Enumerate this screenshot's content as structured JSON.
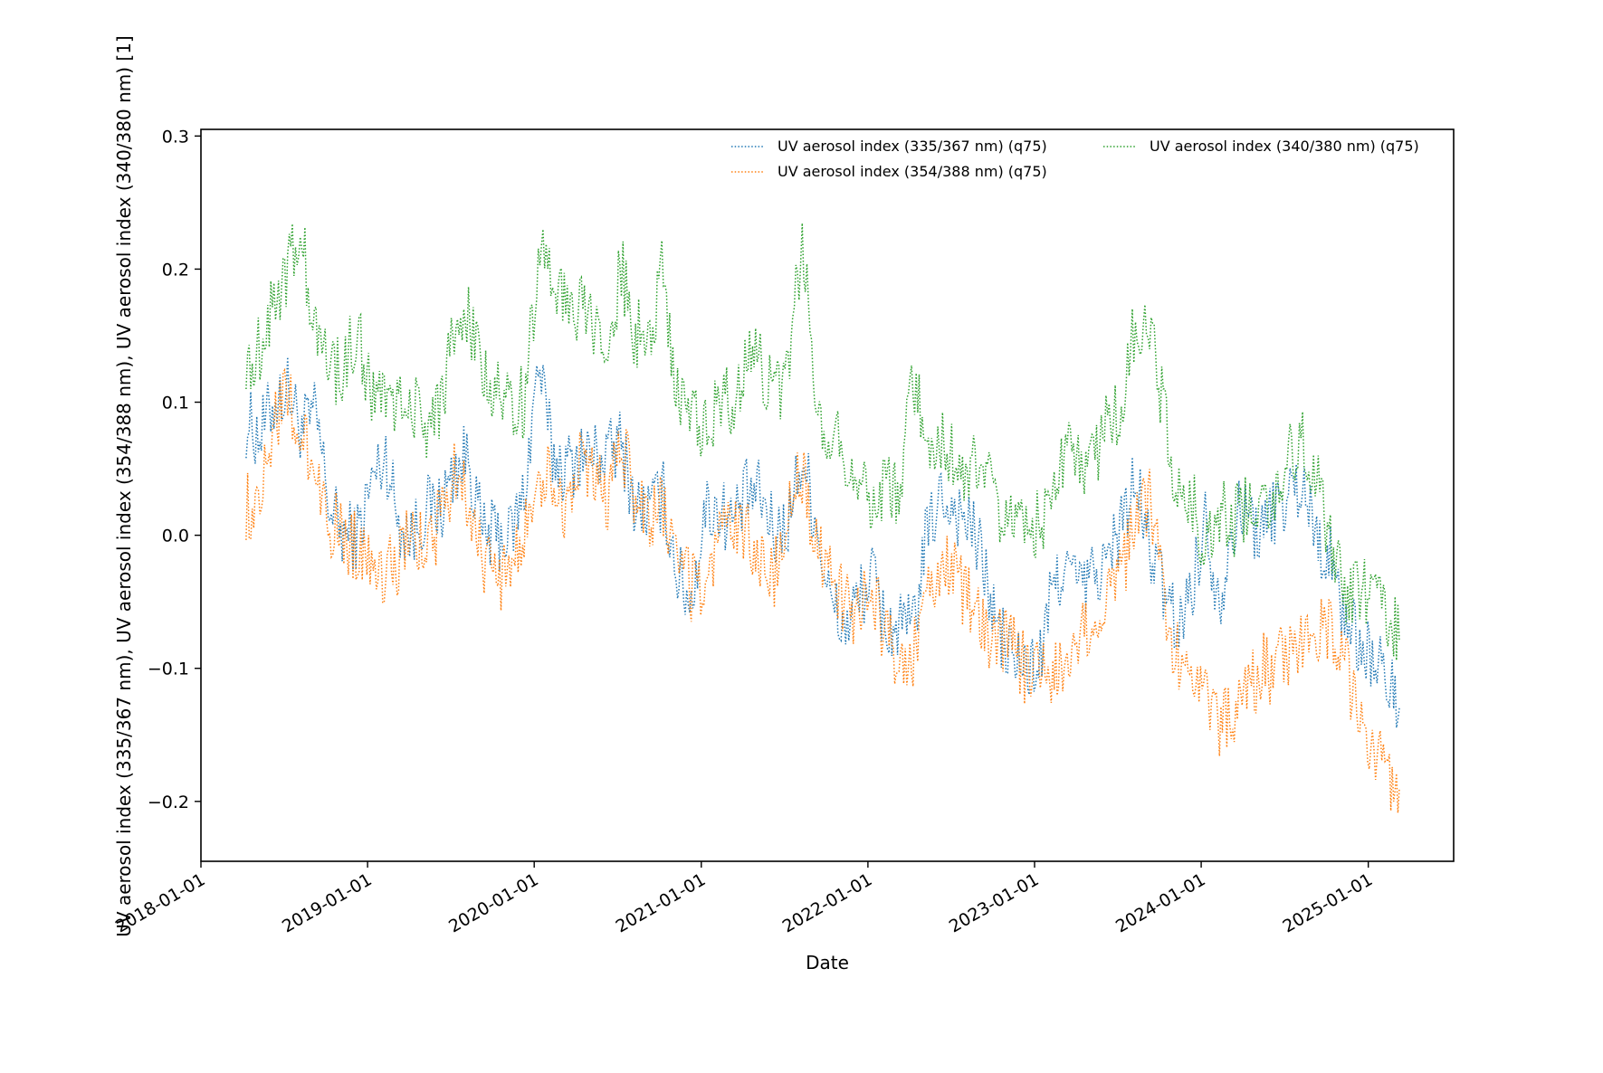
{
  "chart_data": {
    "type": "line",
    "xlabel": "Date",
    "ylabel": "UV aerosol index (335/367 nm), UV aerosol index (354/388 nm), UV aerosol index (340/380 nm) [1]",
    "xlim": [
      "2018-01-01",
      "2025-07-07"
    ],
    "ylim": [
      -0.245,
      0.305
    ],
    "x_ticks": [
      "2018-01-01",
      "2019-01-01",
      "2020-01-01",
      "2021-01-01",
      "2022-01-01",
      "2023-01-01",
      "2024-01-01",
      "2025-01-01"
    ],
    "y_ticks": [
      -0.2,
      -0.1,
      0.0,
      0.1,
      0.2,
      0.3
    ],
    "y_tick_labels": [
      "−0.2",
      "−0.1",
      "0.0",
      "0.1",
      "0.2",
      "0.3"
    ],
    "line_style": "dotted",
    "grid": false,
    "legend_position": "top-right",
    "x": [
      "2018-04-10",
      "2018-05-10",
      "2018-06-10",
      "2018-07-10",
      "2018-08-10",
      "2018-09-10",
      "2018-10-10",
      "2018-11-10",
      "2018-12-10",
      "2019-01-10",
      "2019-02-10",
      "2019-03-10",
      "2019-04-10",
      "2019-05-10",
      "2019-06-10",
      "2019-07-10",
      "2019-08-10",
      "2019-09-10",
      "2019-10-10",
      "2019-11-10",
      "2019-12-10",
      "2020-01-10",
      "2020-02-10",
      "2020-03-10",
      "2020-04-10",
      "2020-05-10",
      "2020-06-10",
      "2020-07-10",
      "2020-08-10",
      "2020-09-10",
      "2020-10-10",
      "2020-11-10",
      "2020-12-10",
      "2021-01-10",
      "2021-02-10",
      "2021-03-10",
      "2021-04-10",
      "2021-05-10",
      "2021-06-10",
      "2021-07-10",
      "2021-08-10",
      "2021-09-10",
      "2021-10-10",
      "2021-11-10",
      "2021-12-10",
      "2022-01-10",
      "2022-02-10",
      "2022-03-10",
      "2022-04-10",
      "2022-05-10",
      "2022-06-10",
      "2022-07-10",
      "2022-08-10",
      "2022-09-10",
      "2022-10-10",
      "2022-11-10",
      "2022-12-10",
      "2023-01-10",
      "2023-02-10",
      "2023-03-10",
      "2023-04-10",
      "2023-05-10",
      "2023-06-10",
      "2023-07-10",
      "2023-08-10",
      "2023-09-10",
      "2023-10-10",
      "2023-11-10",
      "2023-12-10",
      "2024-01-10",
      "2024-02-10",
      "2024-03-10",
      "2024-04-10",
      "2024-05-10",
      "2024-06-10",
      "2024-07-10",
      "2024-08-10",
      "2024-09-10",
      "2024-10-10",
      "2024-11-10",
      "2024-12-10",
      "2025-01-10",
      "2025-02-10",
      "2025-03-10"
    ],
    "series": [
      {
        "name": "UV aerosol index (335/367 nm) (q75)",
        "color": "#1f77b4",
        "values": [
          0.085,
          0.075,
          0.1,
          0.11,
          0.08,
          0.09,
          0.02,
          0.0,
          0.0,
          0.04,
          0.06,
          0.01,
          0.0,
          0.02,
          0.02,
          0.05,
          0.06,
          0.0,
          0.0,
          0.0,
          0.03,
          0.13,
          0.06,
          0.05,
          0.06,
          0.06,
          0.06,
          0.07,
          0.02,
          0.02,
          0.03,
          -0.03,
          -0.05,
          0.02,
          0.02,
          0.01,
          0.03,
          0.03,
          0.0,
          0.01,
          0.06,
          0.01,
          -0.05,
          -0.07,
          -0.05,
          -0.03,
          -0.07,
          -0.07,
          -0.07,
          0.0,
          0.03,
          0.02,
          0.01,
          -0.02,
          -0.07,
          -0.09,
          -0.1,
          -0.1,
          -0.04,
          -0.02,
          -0.04,
          -0.03,
          -0.02,
          0.01,
          0.04,
          -0.01,
          -0.04,
          -0.07,
          -0.04,
          0.01,
          -0.05,
          0.01,
          0.02,
          0.0,
          0.02,
          0.03,
          0.04,
          0.0,
          -0.02,
          -0.06,
          -0.08,
          -0.09,
          -0.11,
          -0.13
        ]
      },
      {
        "name": "UV aerosol index (354/388 nm) (q75)",
        "color": "#ff7f0e",
        "values": [
          0.02,
          0.03,
          0.09,
          0.1,
          0.07,
          0.05,
          0.01,
          0.0,
          -0.01,
          -0.01,
          -0.03,
          -0.02,
          0.0,
          -0.01,
          0.01,
          0.05,
          0.03,
          -0.02,
          -0.03,
          -0.03,
          0.0,
          0.05,
          0.04,
          0.02,
          0.05,
          0.04,
          0.03,
          0.07,
          0.03,
          0.01,
          0.02,
          -0.02,
          -0.04,
          -0.04,
          0.0,
          0.0,
          0.01,
          -0.02,
          -0.03,
          0.01,
          0.05,
          -0.01,
          -0.03,
          -0.05,
          -0.06,
          -0.04,
          -0.08,
          -0.1,
          -0.09,
          -0.05,
          -0.02,
          -0.03,
          -0.05,
          -0.07,
          -0.08,
          -0.08,
          -0.1,
          -0.09,
          -0.1,
          -0.1,
          -0.08,
          -0.06,
          -0.04,
          -0.03,
          0.01,
          0.03,
          -0.05,
          -0.09,
          -0.09,
          -0.11,
          -0.15,
          -0.13,
          -0.12,
          -0.1,
          -0.1,
          -0.09,
          -0.08,
          -0.07,
          -0.07,
          -0.09,
          -0.14,
          -0.16,
          -0.18,
          -0.19
        ]
      },
      {
        "name": "UV aerosol index (340/380 nm) (q75)",
        "color": "#2ca02c",
        "values": [
          0.13,
          0.14,
          0.18,
          0.2,
          0.22,
          0.15,
          0.13,
          0.12,
          0.16,
          0.1,
          0.11,
          0.1,
          0.1,
          0.08,
          0.1,
          0.15,
          0.16,
          0.12,
          0.11,
          0.1,
          0.1,
          0.21,
          0.2,
          0.17,
          0.17,
          0.15,
          0.14,
          0.2,
          0.15,
          0.15,
          0.2,
          0.1,
          0.1,
          0.08,
          0.1,
          0.1,
          0.13,
          0.13,
          0.1,
          0.13,
          0.22,
          0.1,
          0.08,
          0.06,
          0.04,
          0.03,
          0.04,
          0.03,
          0.12,
          0.07,
          0.07,
          0.06,
          0.05,
          0.05,
          0.02,
          0.01,
          0.01,
          0.01,
          0.03,
          0.06,
          0.05,
          0.06,
          0.08,
          0.1,
          0.16,
          0.15,
          0.1,
          0.03,
          0.03,
          -0.01,
          0.02,
          0.01,
          0.02,
          0.03,
          0.03,
          0.06,
          0.07,
          0.04,
          0.0,
          -0.04,
          -0.04,
          -0.05,
          -0.06,
          -0.08
        ]
      }
    ]
  }
}
